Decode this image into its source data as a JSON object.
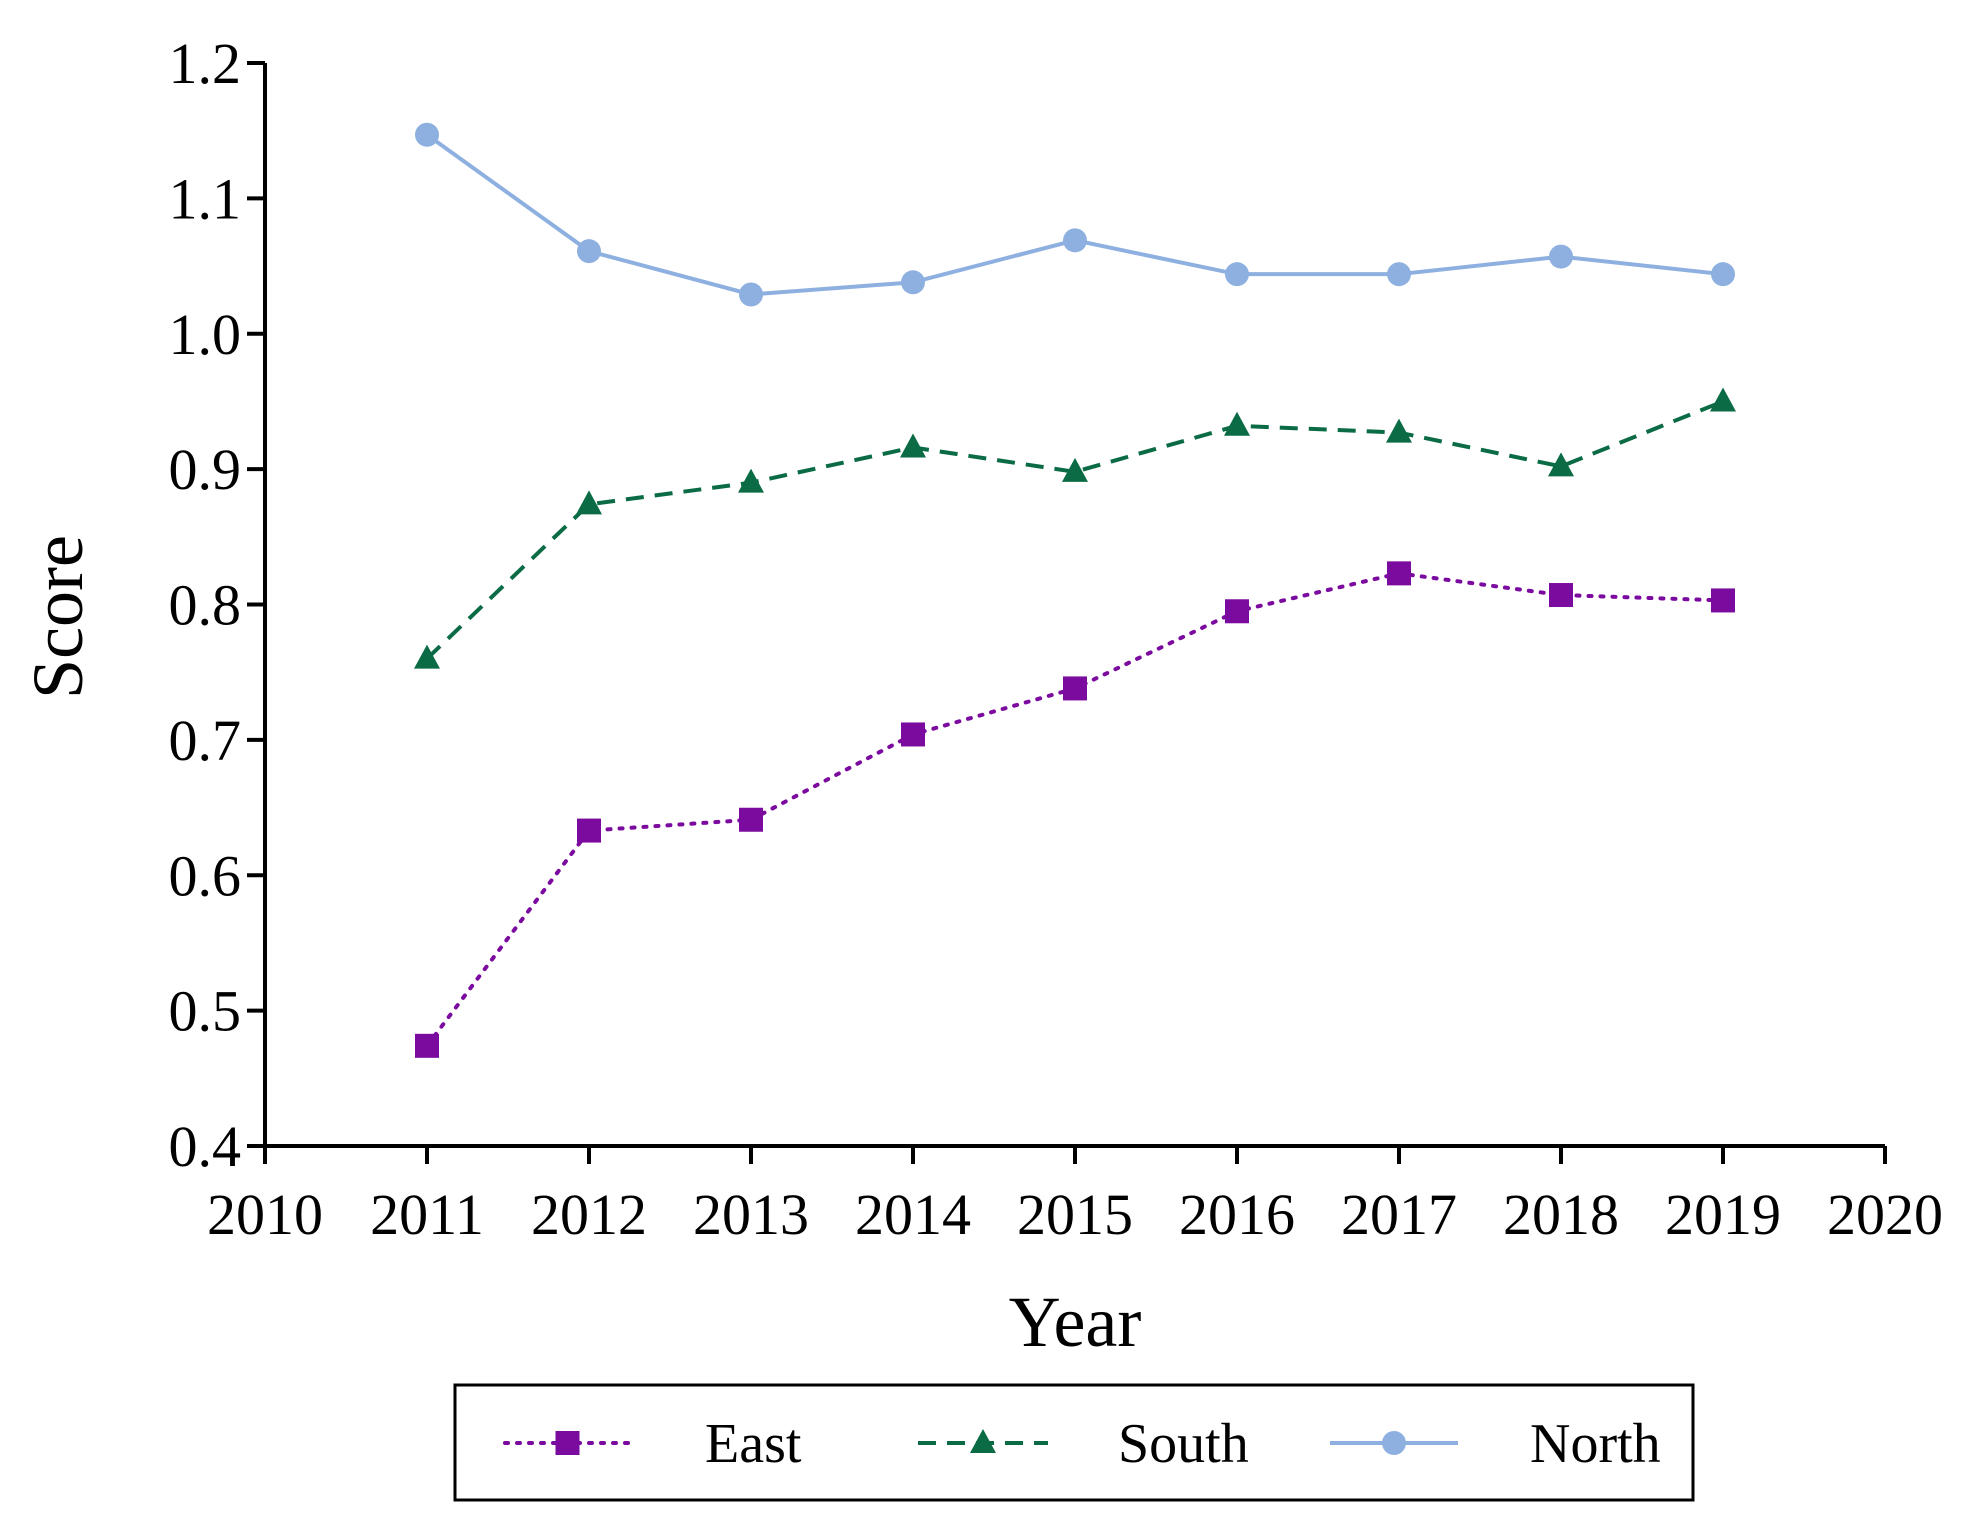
{
  "chart_data": {
    "type": "line",
    "title": "",
    "xlabel": "Year",
    "ylabel": "Score",
    "xlim": [
      2010,
      2020
    ],
    "ylim": [
      0.4,
      1.2
    ],
    "xticks": [
      "2010",
      "2011",
      "2012",
      "2013",
      "2014",
      "2015",
      "2016",
      "2017",
      "2018",
      "2019",
      "2020"
    ],
    "yticks": [
      "0.4",
      "0.5",
      "0.6",
      "0.7",
      "0.8",
      "0.9",
      "1.0",
      "1.1",
      "1.2"
    ],
    "grid": false,
    "legend_position": "bottom",
    "x": [
      2011,
      2012,
      2013,
      2014,
      2015,
      2016,
      2017,
      2018,
      2019
    ],
    "series": [
      {
        "name": "East",
        "values": [
          0.474,
          0.633,
          0.641,
          0.704,
          0.738,
          0.795,
          0.823,
          0.807,
          0.803
        ],
        "color": "#7B0A9E",
        "line": "dotted",
        "marker": "square"
      },
      {
        "name": "South",
        "values": [
          0.76,
          0.874,
          0.89,
          0.916,
          0.898,
          0.932,
          0.927,
          0.902,
          0.95
        ],
        "color": "#0B6B45",
        "line": "dashed",
        "marker": "triangle"
      },
      {
        "name": "North",
        "values": [
          1.147,
          1.061,
          1.029,
          1.038,
          1.069,
          1.044,
          1.044,
          1.057,
          1.044
        ],
        "color": "#8EB0E0",
        "line": "solid",
        "marker": "circle"
      }
    ]
  }
}
